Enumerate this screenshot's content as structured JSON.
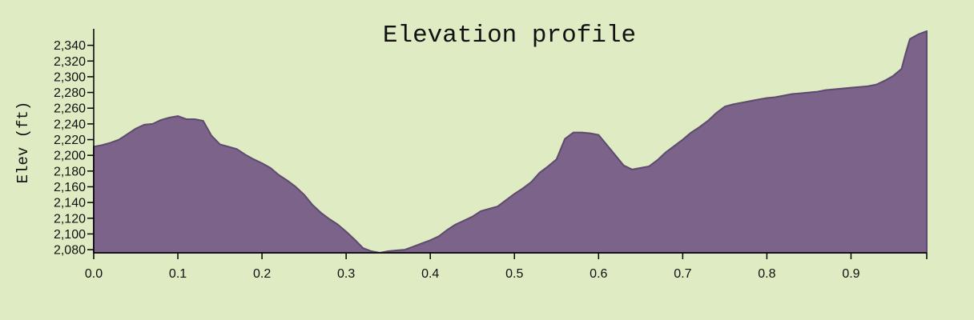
{
  "colors": {
    "background": "#dfebc3",
    "area_fill": "#7b6389",
    "area_stroke": "#5e4a6e",
    "axis": "#000000",
    "text": "#111111"
  },
  "chart_data": {
    "type": "area",
    "title": "Elevation profile",
    "xlabel": "",
    "ylabel": "Elev (ft)",
    "xlim": [
      0,
      0.99
    ],
    "ylim": [
      2076,
      2361
    ],
    "x_ticks": [
      0.0,
      0.1,
      0.2,
      0.3,
      0.4,
      0.5,
      0.6,
      0.7,
      0.8,
      0.9
    ],
    "x_tick_labels": [
      "0.0",
      "0.1",
      "0.2",
      "0.3",
      "0.4",
      "0.5",
      "0.6",
      "0.7",
      "0.8",
      "0.9"
    ],
    "y_ticks": [
      2080,
      2100,
      2120,
      2140,
      2160,
      2180,
      2200,
      2220,
      2240,
      2260,
      2280,
      2300,
      2320,
      2340
    ],
    "y_tick_labels": [
      "2,080",
      "2,100",
      "2,120",
      "2,140",
      "2,160",
      "2,180",
      "2,200",
      "2,220",
      "2,240",
      "2,260",
      "2,280",
      "2,300",
      "2,320",
      "2,340"
    ],
    "grid": false,
    "series": [
      {
        "x": [
          0.0,
          0.01,
          0.02,
          0.03,
          0.04,
          0.05,
          0.06,
          0.07,
          0.08,
          0.09,
          0.1,
          0.11,
          0.12,
          0.13,
          0.14,
          0.15,
          0.16,
          0.17,
          0.18,
          0.19,
          0.2,
          0.21,
          0.22,
          0.23,
          0.24,
          0.25,
          0.26,
          0.27,
          0.28,
          0.29,
          0.3,
          0.31,
          0.32,
          0.33,
          0.34,
          0.35,
          0.36,
          0.37,
          0.38,
          0.39,
          0.4,
          0.41,
          0.42,
          0.43,
          0.44,
          0.45,
          0.46,
          0.47,
          0.48,
          0.49,
          0.5,
          0.51,
          0.52,
          0.53,
          0.54,
          0.55,
          0.56,
          0.57,
          0.58,
          0.59,
          0.6,
          0.61,
          0.62,
          0.63,
          0.64,
          0.65,
          0.66,
          0.67,
          0.68,
          0.69,
          0.7,
          0.71,
          0.72,
          0.73,
          0.74,
          0.75,
          0.76,
          0.77,
          0.78,
          0.79,
          0.8,
          0.81,
          0.82,
          0.83,
          0.84,
          0.85,
          0.86,
          0.87,
          0.88,
          0.89,
          0.9,
          0.91,
          0.92,
          0.93,
          0.94,
          0.95,
          0.96,
          0.965,
          0.97,
          0.98,
          0.99
        ],
        "y": [
          2211,
          2213,
          2216,
          2220,
          2227,
          2234,
          2239,
          2240,
          2245,
          2248,
          2250,
          2246,
          2246,
          2244,
          2225,
          2214,
          2211,
          2208,
          2201,
          2195,
          2190,
          2184,
          2175,
          2168,
          2160,
          2150,
          2137,
          2127,
          2119,
          2112,
          2103,
          2093,
          2082,
          2078,
          2076,
          2078,
          2079,
          2080,
          2084,
          2088,
          2092,
          2097,
          2105,
          2112,
          2117,
          2122,
          2129,
          2132,
          2135,
          2143,
          2151,
          2158,
          2166,
          2178,
          2186,
          2195,
          2221,
          2229,
          2229,
          2228,
          2226,
          2213,
          2200,
          2187,
          2182,
          2184,
          2186,
          2194,
          2204,
          2212,
          2220,
          2229,
          2236,
          2244,
          2254,
          2262,
          2265,
          2267,
          2269,
          2271,
          2273,
          2274,
          2276,
          2278,
          2279,
          2280,
          2281,
          2283,
          2284,
          2285,
          2286,
          2287,
          2288,
          2290,
          2295,
          2301,
          2310,
          2330,
          2348,
          2354,
          2358
        ]
      }
    ]
  }
}
